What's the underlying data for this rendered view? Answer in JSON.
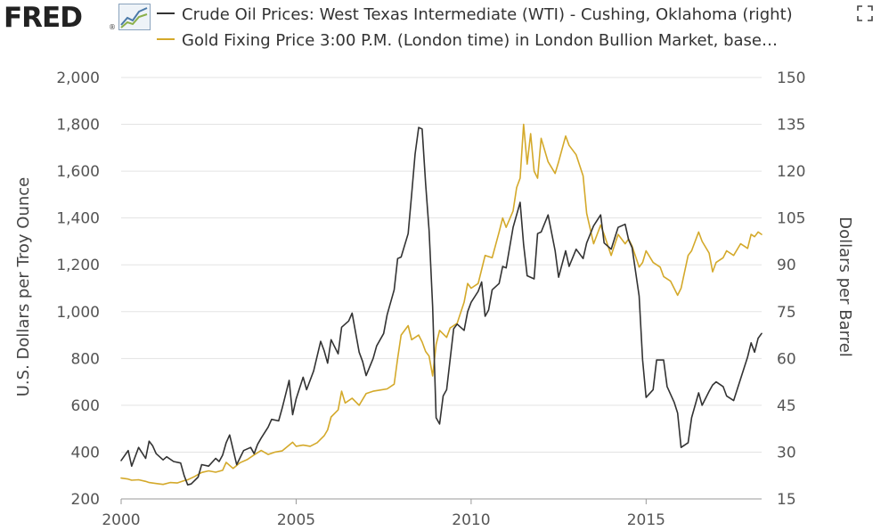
{
  "header": {
    "logo_text": "FRED",
    "logo_mark": "®",
    "logo_icon": "line-graph-icon",
    "expand_icon": "expand-icon"
  },
  "legend": [
    {
      "label": "Crude Oil Prices: West Texas Intermediate (WTI) - Cushing, Oklahoma (right)",
      "color": "#333333"
    },
    {
      "label": "Gold Fixing Price 3:00 P.M. (London time) in London Bullion Market, base…",
      "color": "#d4a92a"
    }
  ],
  "chart_data": {
    "type": "line",
    "left_axis": {
      "label": "U.S. Dollars per Troy Ounce",
      "range": [
        200,
        2000
      ],
      "ticks": [
        "2,000",
        "1,800",
        "1,600",
        "1,400",
        "1,200",
        "1,000",
        "800",
        "600",
        "400",
        "200"
      ]
    },
    "right_axis": {
      "label": "Dollars per Barrel",
      "range": [
        15,
        150
      ],
      "ticks": [
        "150",
        "135",
        "120",
        "105",
        "90",
        "75",
        "60",
        "45",
        "30",
        "15"
      ]
    },
    "x_axis": {
      "range": [
        2000,
        2018.3
      ],
      "ticks": [
        "2000",
        "2005",
        "2010",
        "2015"
      ]
    },
    "grid": "horizontal",
    "series": [
      {
        "name": "Crude Oil Prices: West Texas Intermediate (WTI) - Cushing, Oklahoma (right)",
        "axis": "right",
        "color": "#333333",
        "points": [
          [
            2000.0,
            27.3
          ],
          [
            2000.2,
            30.5
          ],
          [
            2000.3,
            25.5
          ],
          [
            2000.5,
            31.5
          ],
          [
            2000.7,
            28.0
          ],
          [
            2000.8,
            33.5
          ],
          [
            2000.9,
            32.0
          ],
          [
            2001.0,
            29.5
          ],
          [
            2001.2,
            27.5
          ],
          [
            2001.3,
            28.5
          ],
          [
            2001.5,
            27.0
          ],
          [
            2001.7,
            26.5
          ],
          [
            2001.8,
            22.5
          ],
          [
            2001.9,
            19.5
          ],
          [
            2002.0,
            19.8
          ],
          [
            2002.2,
            22.0
          ],
          [
            2002.3,
            26.0
          ],
          [
            2002.5,
            25.5
          ],
          [
            2002.7,
            28.0
          ],
          [
            2002.8,
            27.0
          ],
          [
            2002.9,
            29.0
          ],
          [
            2003.0,
            33.0
          ],
          [
            2003.1,
            35.5
          ],
          [
            2003.3,
            26.0
          ],
          [
            2003.5,
            30.5
          ],
          [
            2003.7,
            31.5
          ],
          [
            2003.8,
            29.5
          ],
          [
            2003.9,
            32.5
          ],
          [
            2004.0,
            34.5
          ],
          [
            2004.2,
            38.0
          ],
          [
            2004.3,
            40.5
          ],
          [
            2004.5,
            40.0
          ],
          [
            2004.6,
            44.0
          ],
          [
            2004.8,
            53.0
          ],
          [
            2004.9,
            42.0
          ],
          [
            2005.0,
            47.0
          ],
          [
            2005.2,
            54.0
          ],
          [
            2005.3,
            50.0
          ],
          [
            2005.5,
            56.0
          ],
          [
            2005.7,
            65.5
          ],
          [
            2005.8,
            62.5
          ],
          [
            2005.9,
            58.5
          ],
          [
            2006.0,
            66.0
          ],
          [
            2006.2,
            61.5
          ],
          [
            2006.3,
            70.0
          ],
          [
            2006.5,
            72.0
          ],
          [
            2006.6,
            74.5
          ],
          [
            2006.8,
            62.0
          ],
          [
            2006.9,
            59.0
          ],
          [
            2007.0,
            54.5
          ],
          [
            2007.2,
            60.0
          ],
          [
            2007.3,
            64.0
          ],
          [
            2007.5,
            68.0
          ],
          [
            2007.6,
            74.0
          ],
          [
            2007.8,
            82.0
          ],
          [
            2007.9,
            92.0
          ],
          [
            2008.0,
            92.5
          ],
          [
            2008.2,
            100.0
          ],
          [
            2008.3,
            112.5
          ],
          [
            2008.4,
            125.5
          ],
          [
            2008.5,
            134.0
          ],
          [
            2008.6,
            133.5
          ],
          [
            2008.7,
            116.0
          ],
          [
            2008.8,
            101.0
          ],
          [
            2008.9,
            76.5
          ],
          [
            2009.0,
            41.0
          ],
          [
            2009.1,
            39.0
          ],
          [
            2009.2,
            48.0
          ],
          [
            2009.3,
            50.0
          ],
          [
            2009.5,
            69.5
          ],
          [
            2009.6,
            71.0
          ],
          [
            2009.8,
            69.0
          ],
          [
            2009.9,
            75.0
          ],
          [
            2010.0,
            78.0
          ],
          [
            2010.2,
            81.5
          ],
          [
            2010.3,
            84.5
          ],
          [
            2010.4,
            73.5
          ],
          [
            2010.5,
            75.5
          ],
          [
            2010.6,
            82.0
          ],
          [
            2010.8,
            84.0
          ],
          [
            2010.9,
            89.5
          ],
          [
            2011.0,
            89.0
          ],
          [
            2011.2,
            102.0
          ],
          [
            2011.4,
            110.0
          ],
          [
            2011.5,
            96.5
          ],
          [
            2011.6,
            86.5
          ],
          [
            2011.8,
            85.5
          ],
          [
            2011.9,
            100.0
          ],
          [
            2012.0,
            100.5
          ],
          [
            2012.2,
            106.0
          ],
          [
            2012.4,
            94.5
          ],
          [
            2012.5,
            86.0
          ],
          [
            2012.7,
            94.5
          ],
          [
            2012.8,
            89.5
          ],
          [
            2013.0,
            95.0
          ],
          [
            2013.2,
            92.0
          ],
          [
            2013.3,
            97.0
          ],
          [
            2013.5,
            102.5
          ],
          [
            2013.7,
            106.0
          ],
          [
            2013.8,
            97.0
          ],
          [
            2014.0,
            95.0
          ],
          [
            2014.2,
            102.0
          ],
          [
            2014.4,
            103.0
          ],
          [
            2014.5,
            98.0
          ],
          [
            2014.6,
            95.5
          ],
          [
            2014.8,
            80.0
          ],
          [
            2014.9,
            59.5
          ],
          [
            2015.0,
            47.5
          ],
          [
            2015.2,
            50.0
          ],
          [
            2015.3,
            59.5
          ],
          [
            2015.5,
            59.5
          ],
          [
            2015.6,
            51.0
          ],
          [
            2015.8,
            46.0
          ],
          [
            2015.9,
            42.5
          ],
          [
            2016.0,
            31.5
          ],
          [
            2016.2,
            33.0
          ],
          [
            2016.3,
            41.0
          ],
          [
            2016.5,
            49.0
          ],
          [
            2016.6,
            45.0
          ],
          [
            2016.8,
            49.5
          ],
          [
            2016.9,
            51.5
          ],
          [
            2017.0,
            52.5
          ],
          [
            2017.2,
            51.0
          ],
          [
            2017.3,
            48.0
          ],
          [
            2017.5,
            46.5
          ],
          [
            2017.6,
            50.0
          ],
          [
            2017.8,
            57.0
          ],
          [
            2017.9,
            60.5
          ],
          [
            2018.0,
            65.0
          ],
          [
            2018.1,
            62.0
          ],
          [
            2018.2,
            66.5
          ],
          [
            2018.3,
            68.0
          ]
        ]
      },
      {
        "name": "Gold Fixing Price 3:00 P.M. (London time) in London Bullion Market, base…",
        "axis": "left",
        "color": "#d4a92a",
        "points": [
          [
            2000.0,
            289
          ],
          [
            2000.2,
            285
          ],
          [
            2000.3,
            280
          ],
          [
            2000.5,
            282
          ],
          [
            2000.7,
            275
          ],
          [
            2000.8,
            270
          ],
          [
            2001.0,
            266
          ],
          [
            2001.2,
            262
          ],
          [
            2001.4,
            270
          ],
          [
            2001.6,
            268
          ],
          [
            2001.8,
            278
          ],
          [
            2001.9,
            282
          ],
          [
            2002.1,
            296
          ],
          [
            2002.3,
            313
          ],
          [
            2002.5,
            320
          ],
          [
            2002.7,
            314
          ],
          [
            2002.9,
            322
          ],
          [
            2003.0,
            356
          ],
          [
            2003.2,
            330
          ],
          [
            2003.4,
            355
          ],
          [
            2003.6,
            368
          ],
          [
            2003.8,
            388
          ],
          [
            2004.0,
            407
          ],
          [
            2004.2,
            390
          ],
          [
            2004.4,
            400
          ],
          [
            2004.6,
            405
          ],
          [
            2004.8,
            430
          ],
          [
            2004.9,
            442
          ],
          [
            2005.0,
            425
          ],
          [
            2005.2,
            430
          ],
          [
            2005.4,
            425
          ],
          [
            2005.6,
            440
          ],
          [
            2005.8,
            470
          ],
          [
            2005.9,
            495
          ],
          [
            2006.0,
            550
          ],
          [
            2006.2,
            580
          ],
          [
            2006.3,
            660
          ],
          [
            2006.4,
            610
          ],
          [
            2006.6,
            630
          ],
          [
            2006.8,
            600
          ],
          [
            2006.9,
            625
          ],
          [
            2007.0,
            650
          ],
          [
            2007.2,
            660
          ],
          [
            2007.4,
            665
          ],
          [
            2007.6,
            670
          ],
          [
            2007.8,
            690
          ],
          [
            2007.9,
            800
          ],
          [
            2008.0,
            900
          ],
          [
            2008.2,
            940
          ],
          [
            2008.3,
            880
          ],
          [
            2008.5,
            900
          ],
          [
            2008.6,
            870
          ],
          [
            2008.7,
            830
          ],
          [
            2008.8,
            810
          ],
          [
            2008.9,
            725
          ],
          [
            2009.0,
            860
          ],
          [
            2009.1,
            920
          ],
          [
            2009.3,
            890
          ],
          [
            2009.4,
            930
          ],
          [
            2009.6,
            950
          ],
          [
            2009.8,
            1040
          ],
          [
            2009.9,
            1120
          ],
          [
            2010.0,
            1100
          ],
          [
            2010.2,
            1120
          ],
          [
            2010.3,
            1180
          ],
          [
            2010.4,
            1240
          ],
          [
            2010.6,
            1230
          ],
          [
            2010.8,
            1340
          ],
          [
            2010.9,
            1400
          ],
          [
            2011.0,
            1360
          ],
          [
            2011.2,
            1430
          ],
          [
            2011.3,
            1530
          ],
          [
            2011.4,
            1570
          ],
          [
            2011.5,
            1800
          ],
          [
            2011.6,
            1630
          ],
          [
            2011.7,
            1760
          ],
          [
            2011.8,
            1600
          ],
          [
            2011.9,
            1570
          ],
          [
            2012.0,
            1740
          ],
          [
            2012.2,
            1640
          ],
          [
            2012.4,
            1590
          ],
          [
            2012.5,
            1640
          ],
          [
            2012.7,
            1750
          ],
          [
            2012.8,
            1710
          ],
          [
            2013.0,
            1670
          ],
          [
            2013.2,
            1580
          ],
          [
            2013.3,
            1420
          ],
          [
            2013.5,
            1290
          ],
          [
            2013.7,
            1370
          ],
          [
            2013.8,
            1330
          ],
          [
            2014.0,
            1240
          ],
          [
            2014.2,
            1330
          ],
          [
            2014.4,
            1290
          ],
          [
            2014.5,
            1310
          ],
          [
            2014.6,
            1280
          ],
          [
            2014.8,
            1190
          ],
          [
            2014.9,
            1210
          ],
          [
            2015.0,
            1260
          ],
          [
            2015.2,
            1210
          ],
          [
            2015.4,
            1190
          ],
          [
            2015.5,
            1150
          ],
          [
            2015.7,
            1130
          ],
          [
            2015.9,
            1070
          ],
          [
            2016.0,
            1100
          ],
          [
            2016.2,
            1240
          ],
          [
            2016.3,
            1260
          ],
          [
            2016.5,
            1340
          ],
          [
            2016.6,
            1300
          ],
          [
            2016.8,
            1250
          ],
          [
            2016.9,
            1170
          ],
          [
            2017.0,
            1210
          ],
          [
            2017.2,
            1230
          ],
          [
            2017.3,
            1260
          ],
          [
            2017.5,
            1240
          ],
          [
            2017.7,
            1290
          ],
          [
            2017.8,
            1280
          ],
          [
            2017.9,
            1270
          ],
          [
            2018.0,
            1330
          ],
          [
            2018.1,
            1320
          ],
          [
            2018.2,
            1340
          ],
          [
            2018.3,
            1330
          ]
        ]
      }
    ]
  }
}
